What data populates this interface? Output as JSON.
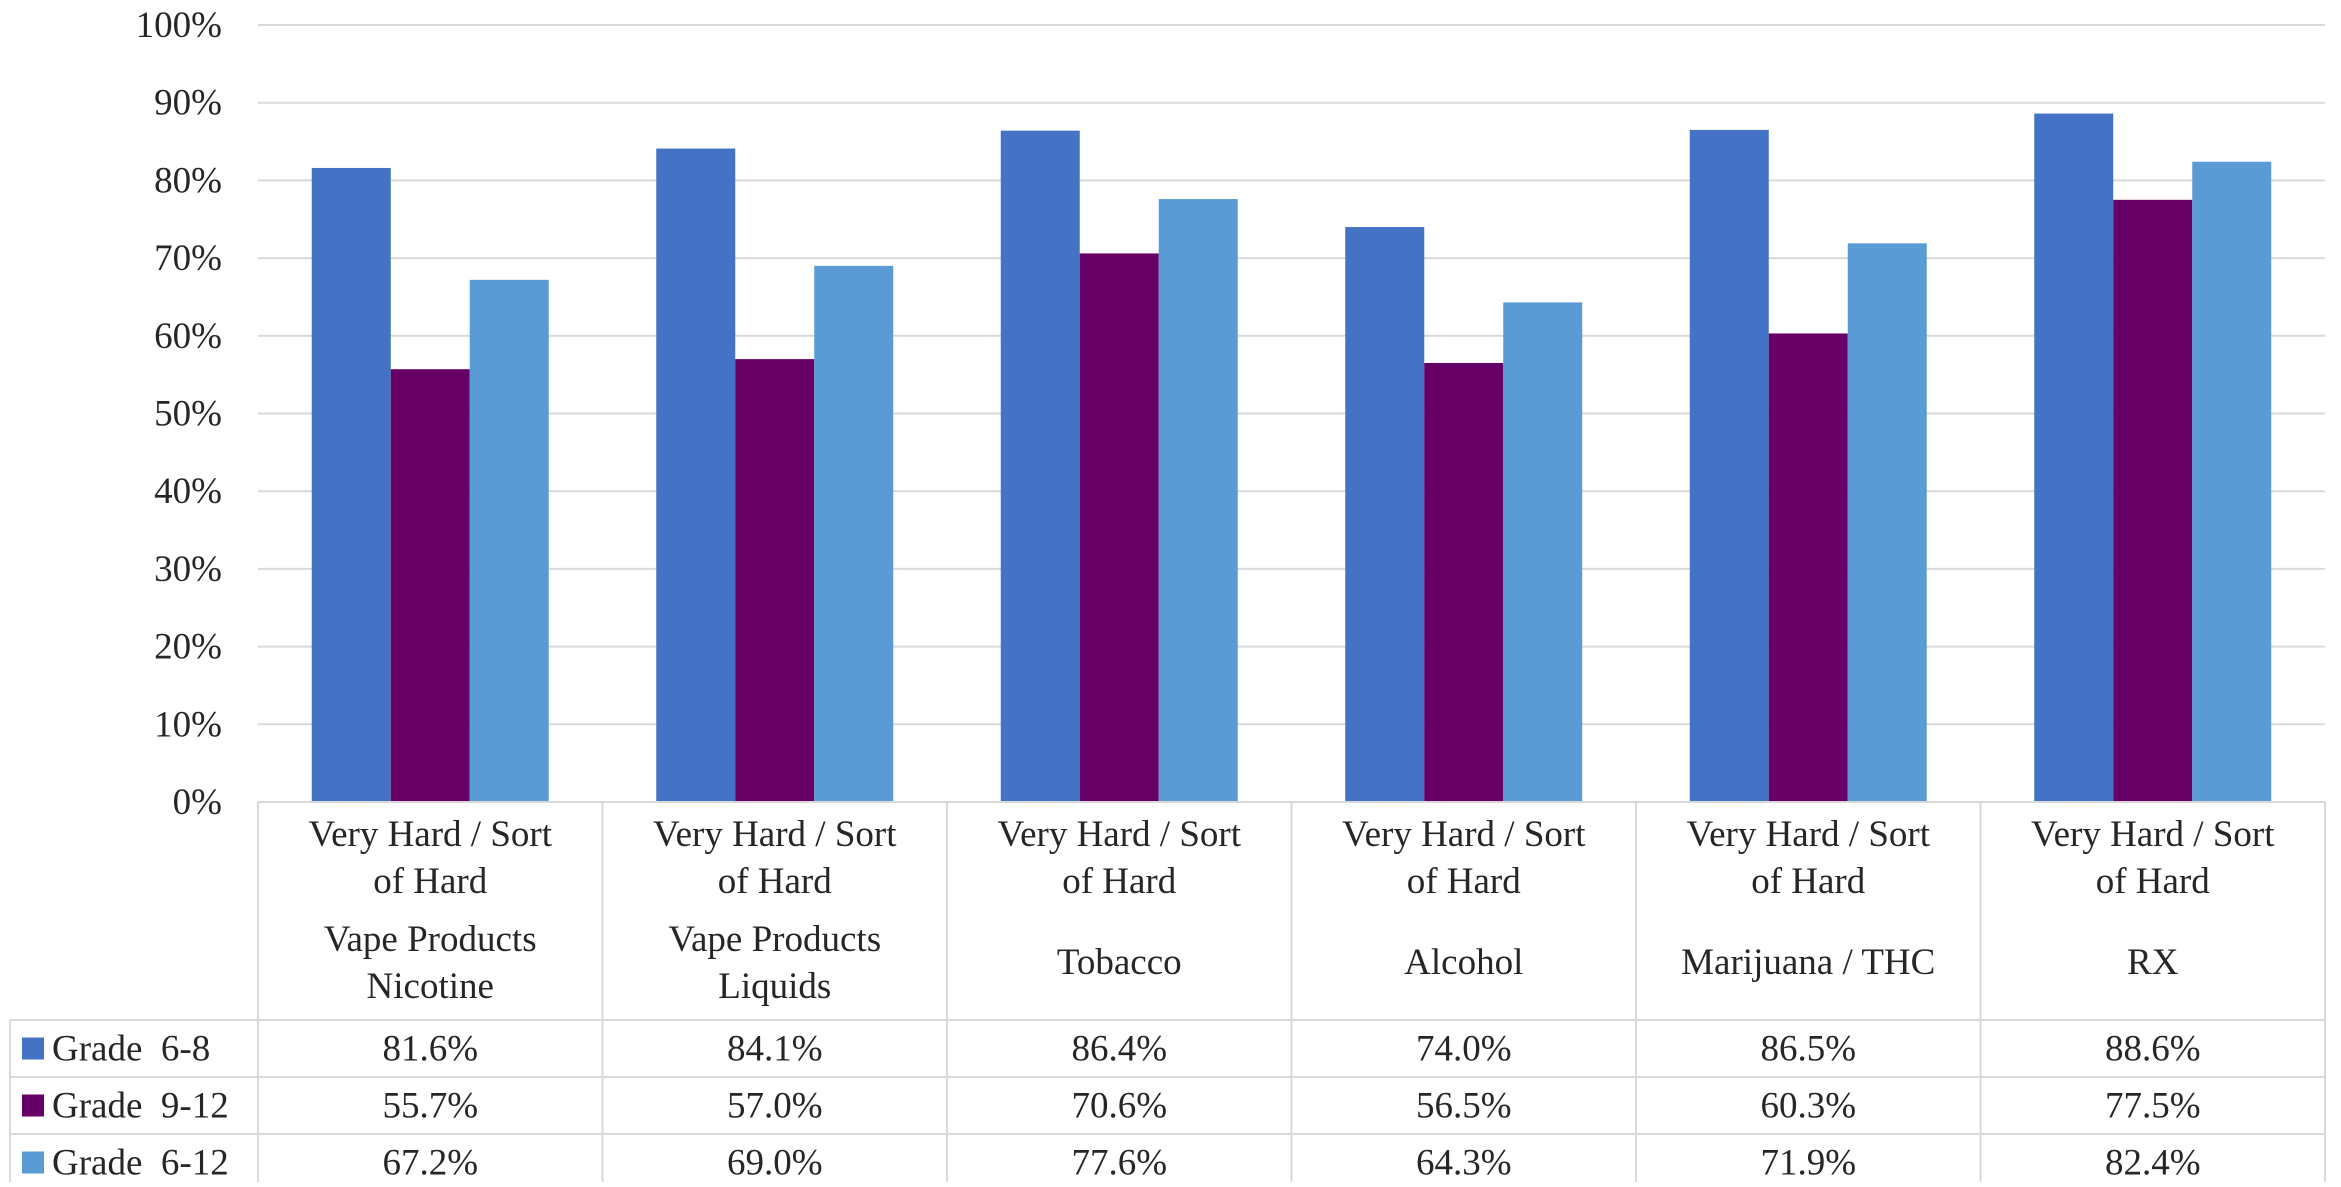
{
  "chart_data": {
    "type": "bar",
    "title": "",
    "xlabel": "",
    "ylabel": "",
    "ylim": [
      0,
      100
    ],
    "yticks": [
      0,
      10,
      20,
      30,
      40,
      50,
      60,
      70,
      80,
      90,
      100
    ],
    "ytick_labels": [
      "0%",
      "10%",
      "20%",
      "30%",
      "40%",
      "50%",
      "60%",
      "70%",
      "80%",
      "90%",
      "100%"
    ],
    "grid": true,
    "legend": "data-table",
    "categories": [
      {
        "group": [
          "Very Hard / Sort",
          "of Hard"
        ],
        "item": [
          "Vape Products",
          "Nicotine"
        ]
      },
      {
        "group": [
          "Very Hard / Sort",
          "of Hard"
        ],
        "item": [
          "Vape Products",
          "Liquids"
        ]
      },
      {
        "group": [
          "Very Hard / Sort",
          "of Hard"
        ],
        "item": [
          "Tobacco"
        ]
      },
      {
        "group": [
          "Very Hard / Sort",
          "of Hard"
        ],
        "item": [
          "Alcohol"
        ]
      },
      {
        "group": [
          "Very Hard / Sort",
          "of Hard"
        ],
        "item": [
          "Marijuana / THC"
        ]
      },
      {
        "group": [
          "Very Hard / Sort",
          "of Hard"
        ],
        "item": [
          "RX"
        ]
      }
    ],
    "series": [
      {
        "name": "Grade  6-8",
        "color": "#4472C4",
        "values": [
          81.6,
          84.1,
          86.4,
          74.0,
          86.5,
          88.6
        ],
        "labels": [
          "81.6%",
          "84.1%",
          "86.4%",
          "74.0%",
          "86.5%",
          "88.6%"
        ]
      },
      {
        "name": "Grade  9-12",
        "color": "#660066",
        "values": [
          55.7,
          57.0,
          70.6,
          56.5,
          60.3,
          77.5
        ],
        "labels": [
          "55.7%",
          "57.0%",
          "70.6%",
          "56.5%",
          "60.3%",
          "77.5%"
        ]
      },
      {
        "name": "Grade  6-12",
        "color": "#5B9BD5",
        "values": [
          67.2,
          69.0,
          77.6,
          64.3,
          71.9,
          82.4
        ],
        "labels": [
          "67.2%",
          "69.0%",
          "77.6%",
          "64.3%",
          "71.9%",
          "82.4%"
        ]
      }
    ],
    "colors": {
      "gridline": "#D9D9D9",
      "table_border": "#D9D9D9",
      "text": "#262626"
    }
  }
}
